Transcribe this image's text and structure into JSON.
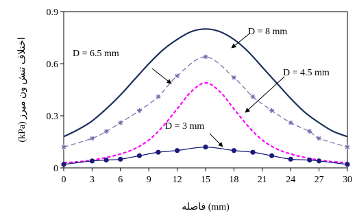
{
  "chart_data": {
    "type": "line",
    "xlabel": "فاصله (mm)",
    "ylabel": "(kPa) اختلاف تنش ون میرز",
    "xlim": [
      0,
      30
    ],
    "ylim": [
      0,
      0.9
    ],
    "x_ticks": [
      0,
      3,
      6,
      9,
      12,
      15,
      18,
      21,
      24,
      27,
      30
    ],
    "y_ticks": [
      0,
      0.3,
      0.6,
      0.9
    ],
    "x_tick_labels": [
      "0",
      "3",
      "6",
      "9",
      "12",
      "15",
      "18",
      "21",
      "24",
      "27",
      "30"
    ],
    "y_tick_labels": [
      "0",
      "0.3",
      "0.6",
      "0.9"
    ],
    "grid": false,
    "series": [
      {
        "name": "D = 8 mm",
        "color": "#1a2f5a",
        "style": "solid",
        "marker": "none",
        "x": [
          0,
          1.5,
          3,
          4.5,
          6,
          7.5,
          9,
          10.5,
          12,
          13.5,
          15,
          16.5,
          18,
          19.5,
          21,
          22.5,
          24,
          25.5,
          27,
          28.5,
          30
        ],
        "y": [
          0.18,
          0.22,
          0.27,
          0.34,
          0.42,
          0.51,
          0.6,
          0.68,
          0.74,
          0.785,
          0.8,
          0.785,
          0.74,
          0.67,
          0.58,
          0.49,
          0.4,
          0.32,
          0.26,
          0.21,
          0.18
        ]
      },
      {
        "name": "D = 6.5 mm",
        "color": "#6a6aaa",
        "style": "dashed",
        "marker": "star",
        "x": [
          0,
          3,
          4.5,
          6,
          8,
          10,
          12,
          15,
          18,
          20,
          22,
          24,
          26,
          27,
          30
        ],
        "y": [
          0.12,
          0.17,
          0.21,
          0.26,
          0.33,
          0.41,
          0.53,
          0.64,
          0.52,
          0.41,
          0.33,
          0.26,
          0.21,
          0.17,
          0.12
        ]
      },
      {
        "name": "D = 4.5 mm",
        "color": "#ff00ff",
        "style": "dashed",
        "marker": "none",
        "x": [
          0,
          1.5,
          3,
          4.5,
          6,
          7.5,
          9,
          10.5,
          12,
          13.5,
          15,
          16.5,
          18,
          19.5,
          21,
          22.5,
          24,
          25.5,
          27,
          28.5,
          30
        ],
        "y": [
          0.03,
          0.035,
          0.045,
          0.06,
          0.08,
          0.11,
          0.16,
          0.24,
          0.34,
          0.44,
          0.49,
          0.44,
          0.34,
          0.24,
          0.16,
          0.11,
          0.08,
          0.06,
          0.045,
          0.035,
          0.03
        ]
      },
      {
        "name": "D = 3 mm",
        "color": "#1a1a7a",
        "style": "solid",
        "marker": "circle",
        "x": [
          0,
          3,
          4.5,
          6,
          8,
          10,
          12,
          15,
          18,
          20,
          22,
          24,
          26,
          27,
          30
        ],
        "y": [
          0.02,
          0.04,
          0.045,
          0.05,
          0.07,
          0.09,
          0.1,
          0.12,
          0.1,
          0.09,
          0.07,
          0.05,
          0.045,
          0.04,
          0.02
        ]
      }
    ],
    "annotations": [
      {
        "text": "D = 8 mm"
      },
      {
        "text": "D = 6.5 mm"
      },
      {
        "text": "D = 4.5 mm"
      },
      {
        "text": "D = 3 mm"
      }
    ]
  }
}
